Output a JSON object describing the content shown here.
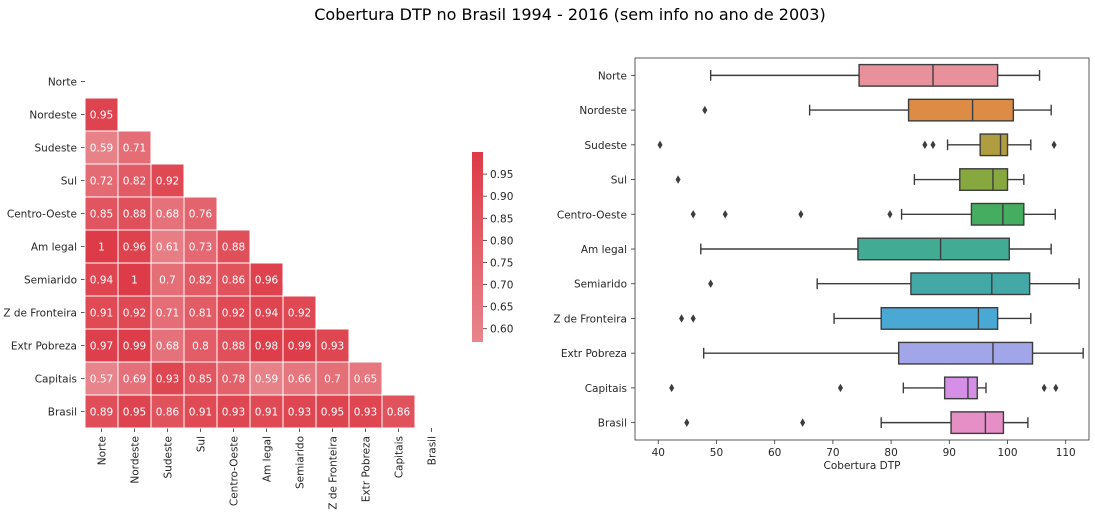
{
  "title": "Cobertura DTP no Brasil 1994 - 2016 (sem info no ano de 2003)",
  "chart_data": [
    {
      "type": "heatmap",
      "title": "",
      "labels": [
        "Norte",
        "Nordeste",
        "Sudeste",
        "Sul",
        "Centro-Oeste",
        "Am legal",
        "Semiarido",
        "Z de Fronteira",
        "Extr Pobreza",
        "Capitais",
        "Brasil"
      ],
      "values": [
        [
          null,
          null,
          null,
          null,
          null,
          null,
          null,
          null,
          null,
          null,
          null
        ],
        [
          0.95,
          null,
          null,
          null,
          null,
          null,
          null,
          null,
          null,
          null,
          null
        ],
        [
          0.59,
          0.71,
          null,
          null,
          null,
          null,
          null,
          null,
          null,
          null,
          null
        ],
        [
          0.72,
          0.82,
          0.92,
          null,
          null,
          null,
          null,
          null,
          null,
          null,
          null
        ],
        [
          0.85,
          0.88,
          0.68,
          0.76,
          null,
          null,
          null,
          null,
          null,
          null,
          null
        ],
        [
          1,
          0.96,
          0.61,
          0.73,
          0.88,
          null,
          null,
          null,
          null,
          null,
          null
        ],
        [
          0.94,
          1,
          0.7,
          0.82,
          0.86,
          0.96,
          null,
          null,
          null,
          null,
          null
        ],
        [
          0.91,
          0.92,
          0.71,
          0.81,
          0.92,
          0.94,
          0.92,
          null,
          null,
          null,
          null
        ],
        [
          0.97,
          0.99,
          0.68,
          0.8,
          0.88,
          0.98,
          0.99,
          0.93,
          null,
          null,
          null
        ],
        [
          0.57,
          0.69,
          0.93,
          0.85,
          0.78,
          0.59,
          0.66,
          0.7,
          0.65,
          null,
          null
        ],
        [
          0.89,
          0.95,
          0.86,
          0.91,
          0.93,
          0.91,
          0.93,
          0.95,
          0.93,
          0.86,
          null
        ]
      ],
      "colorbar": {
        "min": 0.57,
        "max": 1.0,
        "ticks": [
          0.6,
          0.65,
          0.7,
          0.75,
          0.8,
          0.85,
          0.9,
          0.95
        ]
      },
      "colors": {
        "low": "#e8858c",
        "high": "#dc3b47",
        "text": "#ffffff",
        "grid": "#ffffff"
      }
    },
    {
      "type": "box",
      "title": "",
      "xlabel": "Cobertura DTP",
      "ylabel": "",
      "xlim": [
        36,
        114
      ],
      "xticks": [
        40,
        50,
        60,
        70,
        80,
        90,
        100,
        110
      ],
      "grid": false,
      "categories": [
        "Norte",
        "Nordeste",
        "Sudeste",
        "Sul",
        "Centro-Oeste",
        "Am legal",
        "Semiarido",
        "Z de Fronteira",
        "Extr Pobreza",
        "Capitais",
        "Brasil"
      ],
      "boxes": [
        {
          "whislo": 49,
          "q1": 74.5,
          "med": 87.2,
          "q3": 98.3,
          "whishi": 105.5,
          "fliers": [],
          "color": "#e8919d"
        },
        {
          "whislo": 66,
          "q1": 83,
          "med": 94,
          "q3": 101,
          "whishi": 107.5,
          "fliers": [
            48
          ],
          "color": "#dd8c45"
        },
        {
          "whislo": 89.7,
          "q1": 95.3,
          "med": 98.8,
          "q3": 100,
          "whishi": 104,
          "fliers": [
            40.3,
            85.8,
            87.2,
            108
          ],
          "color": "#b09d3f"
        },
        {
          "whislo": 84,
          "q1": 91.8,
          "med": 97.5,
          "q3": 100,
          "whishi": 102.8,
          "fliers": [
            43.4
          ],
          "color": "#87a83e"
        },
        {
          "whislo": 81.8,
          "q1": 93.8,
          "med": 99.2,
          "q3": 102.8,
          "whishi": 108.2,
          "fliers": [
            46,
            51.5,
            64.5,
            79.8
          ],
          "color": "#45ad60"
        },
        {
          "whislo": 47.3,
          "q1": 74.3,
          "med": 88.5,
          "q3": 100.3,
          "whishi": 107.5,
          "fliers": [],
          "color": "#41ab94"
        },
        {
          "whislo": 67.3,
          "q1": 83.4,
          "med": 97.3,
          "q3": 103.8,
          "whishi": 112.3,
          "fliers": [
            49
          ],
          "color": "#44a8a6"
        },
        {
          "whislo": 70.2,
          "q1": 78.3,
          "med": 95,
          "q3": 98.3,
          "whishi": 104,
          "fliers": [
            44,
            46
          ],
          "color": "#4aa8d4"
        },
        {
          "whislo": 47.8,
          "q1": 81.3,
          "med": 97.5,
          "q3": 104.3,
          "whishi": 113,
          "fliers": [],
          "color": "#a2a5e8"
        },
        {
          "whislo": 82.1,
          "q1": 89.2,
          "med": 93.2,
          "q3": 94.8,
          "whishi": 96.3,
          "fliers": [
            42.3,
            71.3,
            106.3,
            108.3
          ],
          "color": "#d58fe6"
        },
        {
          "whislo": 78.3,
          "q1": 90.3,
          "med": 96.2,
          "q3": 99.3,
          "whishi": 103.5,
          "fliers": [
            44.9,
            64.8
          ],
          "color": "#e68fc7"
        }
      ]
    }
  ]
}
